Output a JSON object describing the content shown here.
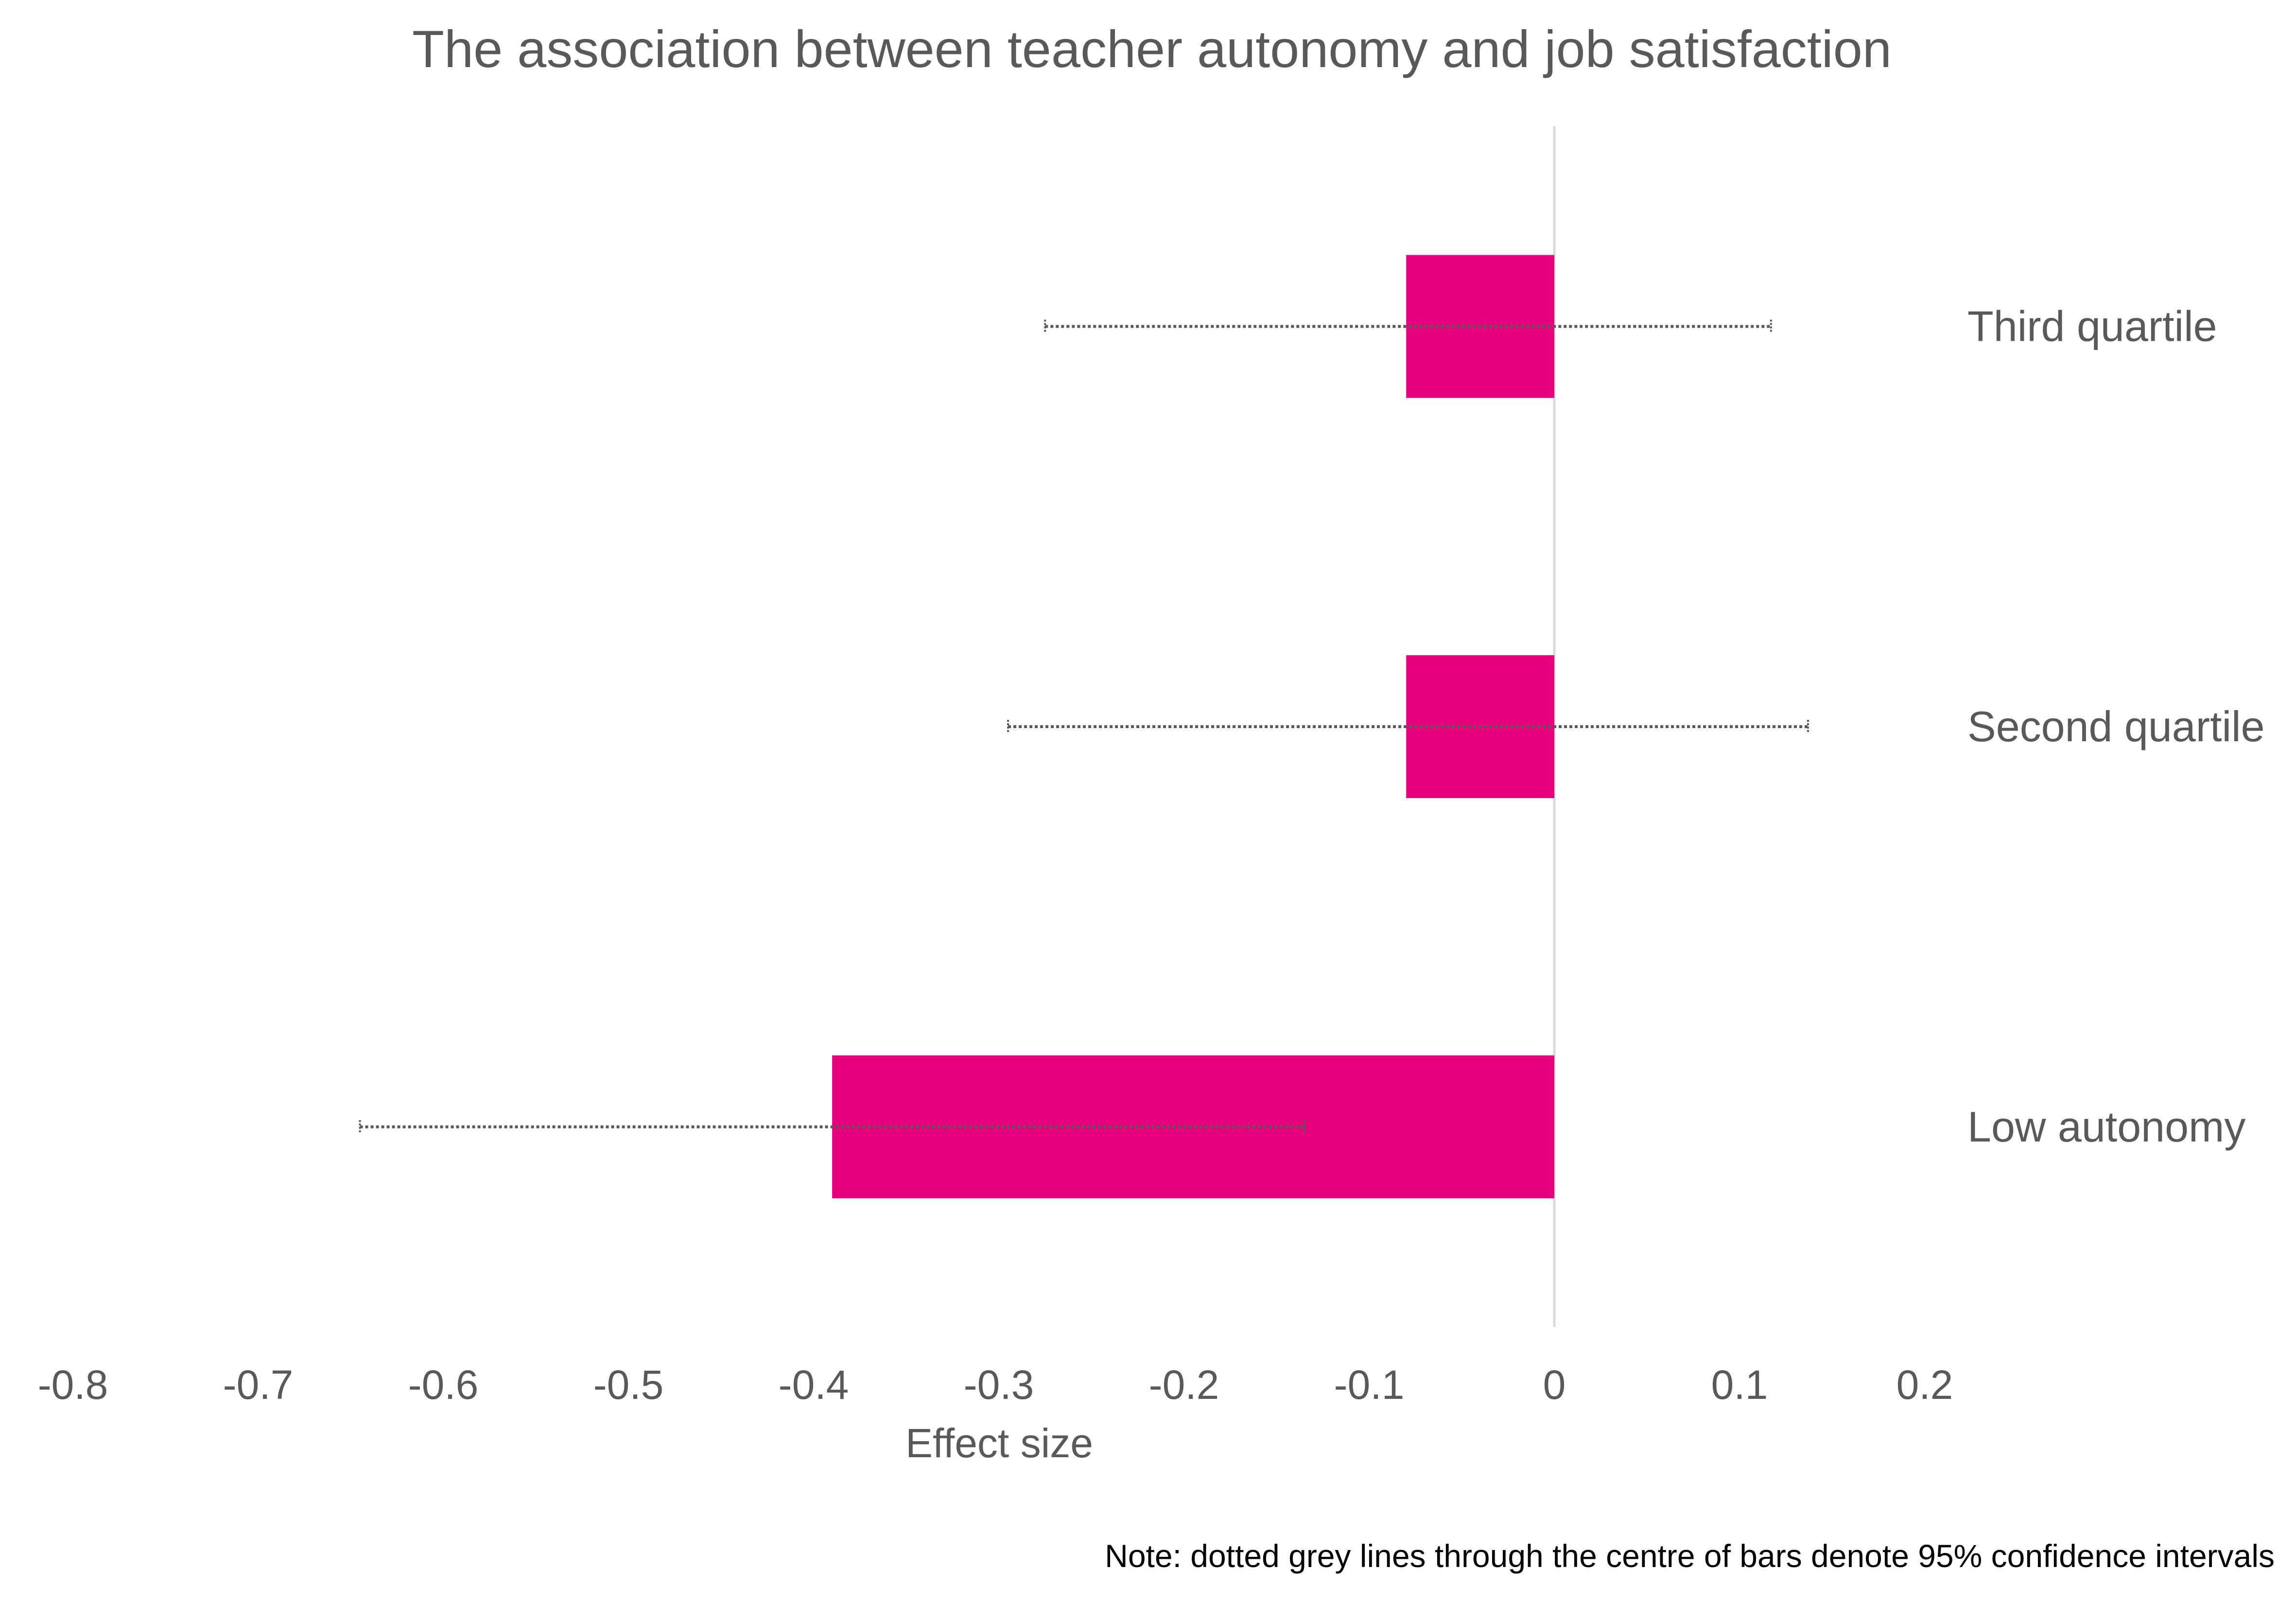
{
  "chart_data": {
    "type": "bar",
    "orientation": "horizontal",
    "title": "The association between teacher autonomy and job satisfaction",
    "xlabel": "Effect size",
    "ylabel": "",
    "xlim": [
      -0.8,
      0.2
    ],
    "x_ticks": [
      "-0.8",
      "-0.7",
      "-0.6",
      "-0.5",
      "-0.4",
      "-0.3",
      "-0.2",
      "-0.1",
      "0",
      "0.1",
      "0.2"
    ],
    "x_tick_values": [
      -0.8,
      -0.7,
      -0.6,
      -0.5,
      -0.4,
      -0.3,
      -0.2,
      -0.1,
      0,
      0.1,
      0.2
    ],
    "categories": [
      "Third quartile",
      "Second quartile",
      "Low autonomy"
    ],
    "values": [
      -0.08,
      -0.08,
      -0.39
    ],
    "ci_low": [
      -0.275,
      -0.295,
      -0.645
    ],
    "ci_high": [
      0.117,
      0.137,
      -0.135
    ],
    "grid": false,
    "legend": "none",
    "note": "Note: dotted grey lines through the centre of bars denote 95% confidence intervals",
    "colors": {
      "bar": "#E6007E",
      "zero_line": "#D9D9D9",
      "ci": "#595959",
      "text": "#595959",
      "note": "#000000"
    }
  }
}
